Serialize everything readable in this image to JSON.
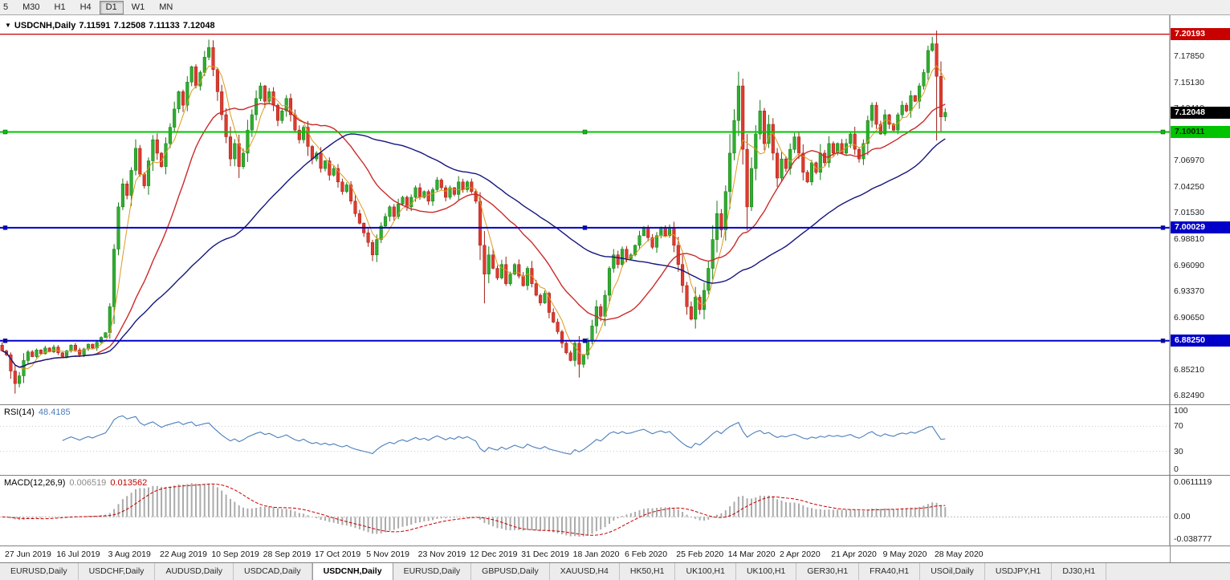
{
  "toolbar": {
    "periods": [
      "5",
      "M30",
      "H1",
      "H4",
      "D1",
      "W1",
      "MN"
    ],
    "active": "D1"
  },
  "chart": {
    "symbol_title": "USDCNH,Daily",
    "last_bar": {
      "o": "7.11591",
      "h": "7.12508",
      "l": "7.11133",
      "c": "7.12048"
    },
    "current_price": {
      "label": "7.12048",
      "value": 7.12048
    },
    "scale": {
      "min": 6.818,
      "max": 7.22
    },
    "y_ticks": [
      7.1785,
      7.1513,
      7.1241,
      7.0969,
      7.0697,
      7.0425,
      7.0153,
      6.9881,
      6.9609,
      6.9337,
      6.9065,
      6.8793,
      6.8521,
      6.8249
    ],
    "levels": [
      {
        "name": "resistance-line-red",
        "label": "7.20193",
        "value": 7.20193,
        "color": "#c80000",
        "text_color": "#ffffff",
        "line_width": 1.2,
        "handles": false
      },
      {
        "name": "support-line-green",
        "label": "7.10011",
        "value": 7.10011,
        "color": "#00c400",
        "text_color": "#002200",
        "line_width": 2,
        "handles": true
      },
      {
        "name": "pivot-line-blue-70002",
        "label": "7.00029",
        "value": 7.00029,
        "color": "#0000c8",
        "text_color": "#ffffff",
        "line_width": 2,
        "handles": true
      },
      {
        "name": "support-line-blue-68825",
        "label": "6.88250",
        "value": 6.8825,
        "color": "#0000c8",
        "text_color": "#ffffff",
        "line_width": 2,
        "handles": true
      }
    ],
    "ma": [
      {
        "period": 5,
        "color": "#dd9a20",
        "width": 1
      },
      {
        "period": 20,
        "color": "#cc2a2a",
        "width": 1.4
      },
      {
        "period": 55,
        "color": "#15157e",
        "width": 1.4
      }
    ],
    "dates": [
      "27 Jun 2019",
      "16 Jul 2019",
      "3 Aug 2019",
      "22 Aug 2019",
      "10 Sep 2019",
      "28 Sep 2019",
      "17 Oct 2019",
      "5 Nov 2019",
      "23 Nov 2019",
      "12 Dec 2019",
      "31 Dec 2019",
      "18 Jan 2020",
      "6 Feb 2020",
      "25 Feb 2020",
      "14 Mar 2020",
      "2 Apr 2020",
      "21 Apr 2020",
      "9 May 2020",
      "28 May 2020"
    ],
    "closes": [
      6.872,
      6.868,
      6.851,
      6.838,
      6.846,
      6.862,
      6.871,
      6.866,
      6.873,
      6.869,
      6.875,
      6.871,
      6.876,
      6.87,
      6.866,
      6.872,
      6.878,
      6.873,
      6.868,
      6.874,
      6.879,
      6.875,
      6.881,
      6.886,
      6.891,
      6.918,
      6.978,
      7.022,
      7.046,
      7.034,
      7.06,
      7.083,
      7.056,
      7.044,
      7.07,
      7.092,
      7.078,
      7.064,
      7.088,
      7.105,
      7.124,
      7.142,
      7.128,
      7.152,
      7.168,
      7.148,
      7.162,
      7.178,
      7.188,
      7.165,
      7.142,
      7.118,
      7.095,
      7.072,
      7.088,
      7.064,
      7.078,
      7.102,
      7.118,
      7.135,
      7.148,
      7.132,
      7.142,
      7.128,
      7.112,
      7.122,
      7.135,
      7.118,
      7.102,
      7.092,
      7.105,
      7.085,
      7.072,
      7.078,
      7.062,
      7.07,
      7.055,
      7.062,
      7.048,
      7.038,
      7.045,
      7.028,
      7.015,
      7.005,
      6.995,
      6.985,
      6.972,
      6.988,
      7.002,
      7.012,
      7.022,
      7.012,
      7.025,
      7.032,
      7.022,
      7.032,
      7.042,
      7.032,
      7.038,
      7.028,
      7.04,
      7.05,
      7.042,
      7.032,
      7.042,
      7.035,
      7.048,
      7.04,
      7.048,
      7.038,
      7.028,
      6.982,
      6.952,
      6.972,
      6.958,
      6.948,
      6.962,
      6.942,
      6.952,
      6.962,
      6.95,
      6.94,
      6.958,
      6.942,
      6.93,
      6.922,
      6.932,
      6.912,
      6.902,
      6.892,
      6.88,
      6.87,
      6.862,
      6.88,
      6.858,
      6.868,
      6.882,
      6.898,
      6.918,
      6.908,
      6.93,
      6.958,
      6.972,
      6.962,
      6.978,
      6.968,
      6.972,
      6.982,
      6.992,
      7.0,
      6.99,
      6.98,
      6.992,
      7.0,
      6.992,
      7.0,
      6.982,
      6.962,
      6.94,
      6.918,
      6.905,
      6.928,
      6.915,
      6.935,
      6.958,
      6.988,
      7.015,
      6.998,
      7.038,
      7.078,
      7.112,
      7.148,
      7.082,
      7.022,
      7.062,
      7.098,
      7.122,
      7.088,
      7.108,
      7.078,
      7.052,
      7.072,
      7.062,
      7.082,
      7.095,
      7.078,
      7.058,
      7.048,
      7.068,
      7.058,
      7.078,
      7.068,
      7.088,
      7.078,
      7.088,
      7.078,
      7.088,
      7.098,
      7.082,
      7.072,
      7.088,
      7.112,
      7.128,
      7.108,
      7.098,
      7.118,
      7.108,
      7.102,
      7.118,
      7.128,
      7.122,
      7.138,
      7.132,
      7.148,
      7.162,
      7.185,
      7.192,
      7.158,
      7.11591,
      7.12048
    ],
    "overrides": {
      "3": {
        "low": 6.8275
      },
      "26": {
        "low": 6.9
      },
      "48": {
        "high": 7.1962
      },
      "86": {
        "low": 6.9655
      },
      "112": {
        "low": 6.9215
      },
      "134": {
        "low": 6.8442
      },
      "171": {
        "high": 7.1628
      },
      "173": {
        "low": 6.9975
      },
      "216": {
        "high": 7.1992
      },
      "217": {
        "low": 7.0912
      }
    }
  },
  "rsi": {
    "header": "RSI(14)",
    "value_text": "48.4185",
    "period": 14,
    "color": "#4a7ebb",
    "levels": [
      {
        "label": "100",
        "value": 100,
        "dotted": false
      },
      {
        "label": "70",
        "value": 70,
        "dotted": true
      },
      {
        "label": "30",
        "value": 30,
        "dotted": true
      },
      {
        "label": "0",
        "value": 0,
        "dotted": false
      }
    ]
  },
  "macd": {
    "header": "MACD(12,26,9)",
    "main_value": "0.006519",
    "signal_value": "0.013562",
    "fast": 12,
    "slow": 26,
    "signal": 9,
    "scale": {
      "min": -0.038777,
      "max": 0.0611119
    },
    "axis_labels": [
      {
        "label": "0.0611119",
        "value": 0.0611119
      },
      {
        "label": "0.00",
        "value": 0
      },
      {
        "label": "-0.038777",
        "value": -0.038777
      }
    ]
  },
  "tabs": {
    "active_index": 4,
    "items": [
      "EURUSD,Daily",
      "USDCHF,Daily",
      "AUDUSD,Daily",
      "USDCAD,Daily",
      "USDCNH,Daily",
      "EURUSD,Daily",
      "GBPUSD,Daily",
      "XAUUSD,H4",
      "HK50,H1",
      "UK100,H1",
      "UK100,H1",
      "GER30,H1",
      "FRA40,H1",
      "USOil,Daily",
      "USDJPY,H1",
      "DJ30,H1"
    ]
  }
}
